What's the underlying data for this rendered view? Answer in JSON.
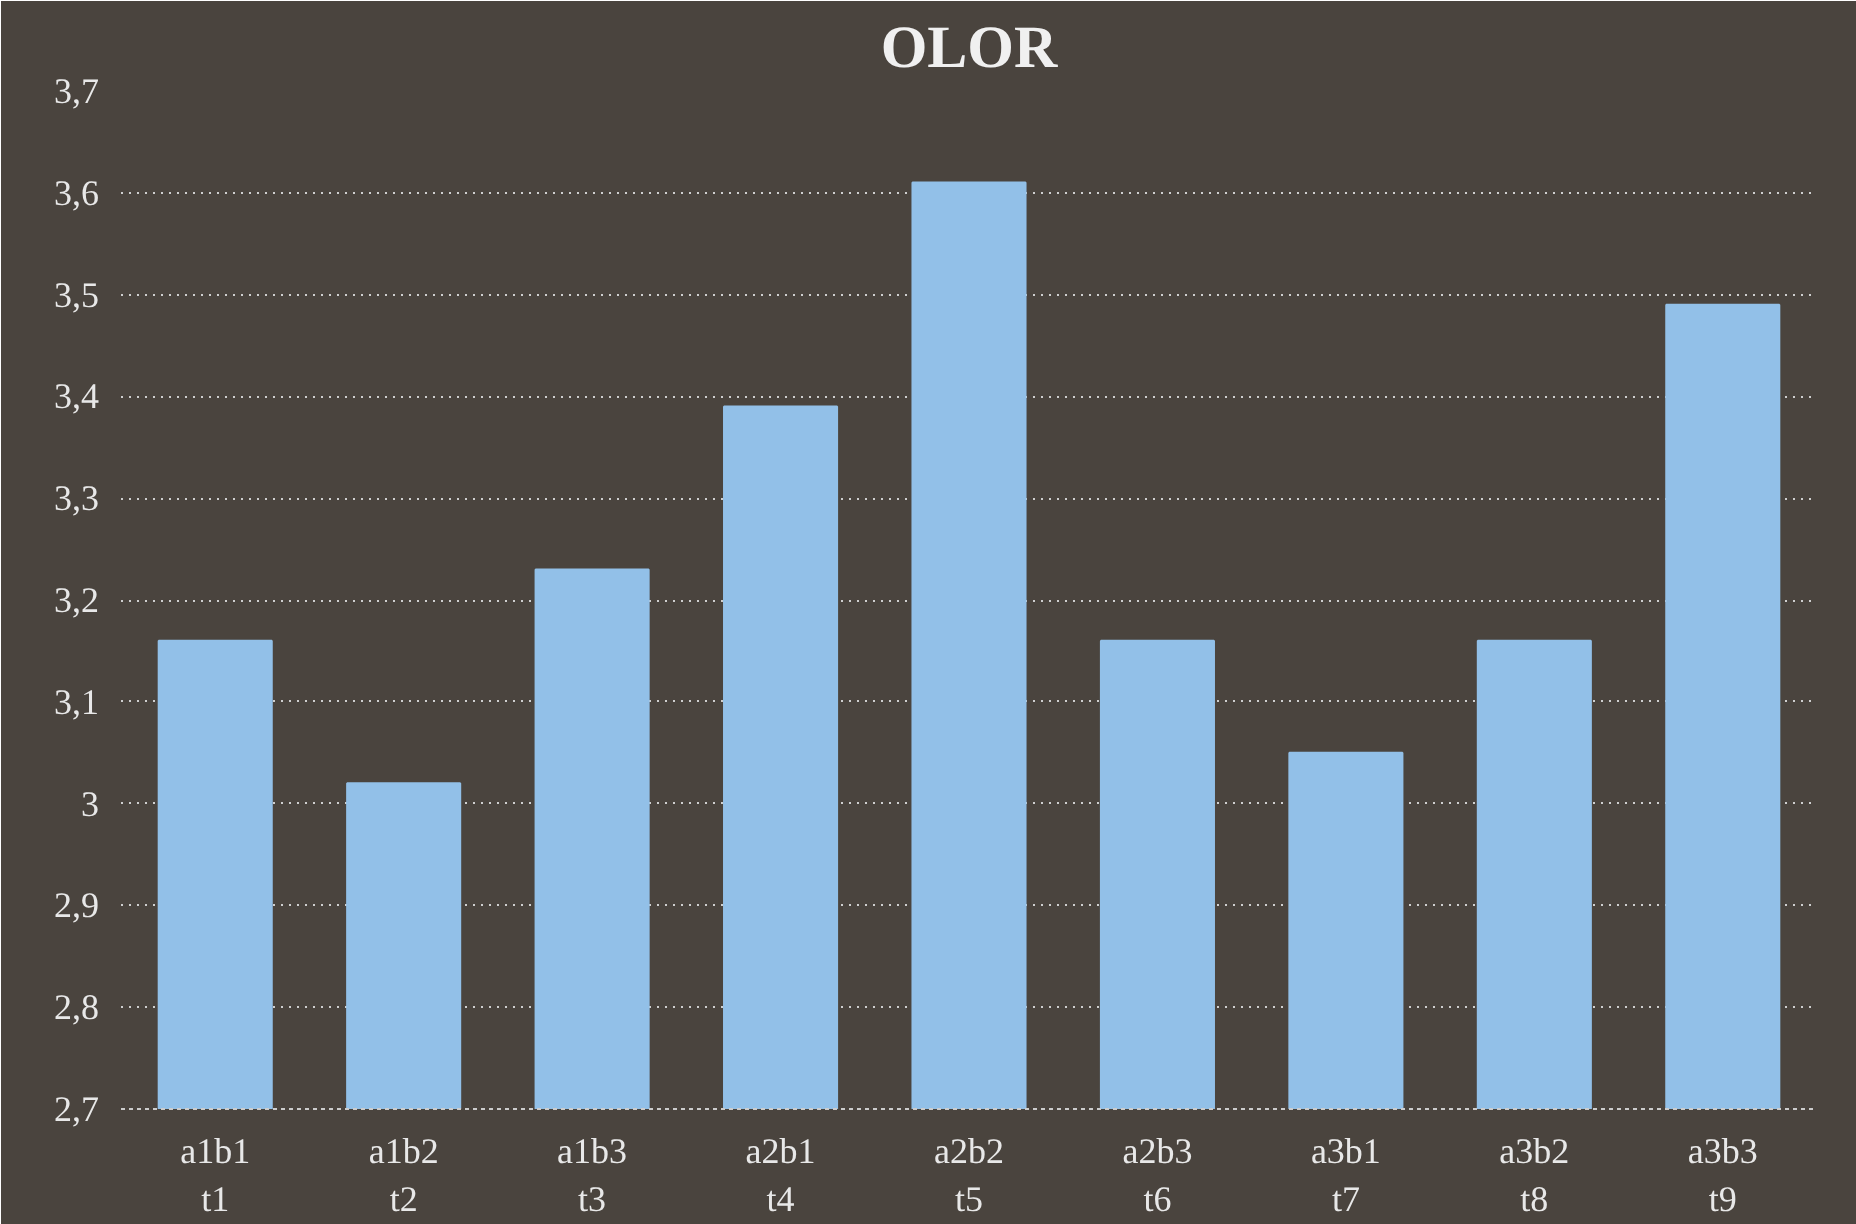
{
  "chart_data": {
    "type": "bar",
    "title": "OLOR",
    "categories": [
      "a1b1\nt1",
      "a1b2\nt2",
      "a1b3\nt3",
      "a2b1\nt4",
      "a2b2\nt5",
      "a2b3\nt6",
      "a3b1\nt7",
      "a3b2\nt8",
      "a3b3\nt9"
    ],
    "values": [
      3.16,
      3.02,
      3.23,
      3.39,
      3.61,
      3.16,
      3.05,
      3.16,
      3.49
    ],
    "color": "#92c0e8",
    "ylim": [
      2.7,
      3.7
    ],
    "yticks": [
      {
        "value": 2.7,
        "label": "2,7"
      },
      {
        "value": 2.8,
        "label": "2,8"
      },
      {
        "value": 2.9,
        "label": "2,9"
      },
      3,
      {
        "value": 3.1,
        "label": "3,1"
      },
      {
        "value": 3.2,
        "label": "3,2"
      },
      {
        "value": 3.3,
        "label": "3,3"
      },
      {
        "value": 3.4,
        "label": "3,4"
      },
      {
        "value": 3.5,
        "label": "3,5"
      },
      {
        "value": 3.6,
        "label": "3,6"
      },
      {
        "value": 3.7,
        "label": "3,7"
      }
    ],
    "grid": "y"
  }
}
